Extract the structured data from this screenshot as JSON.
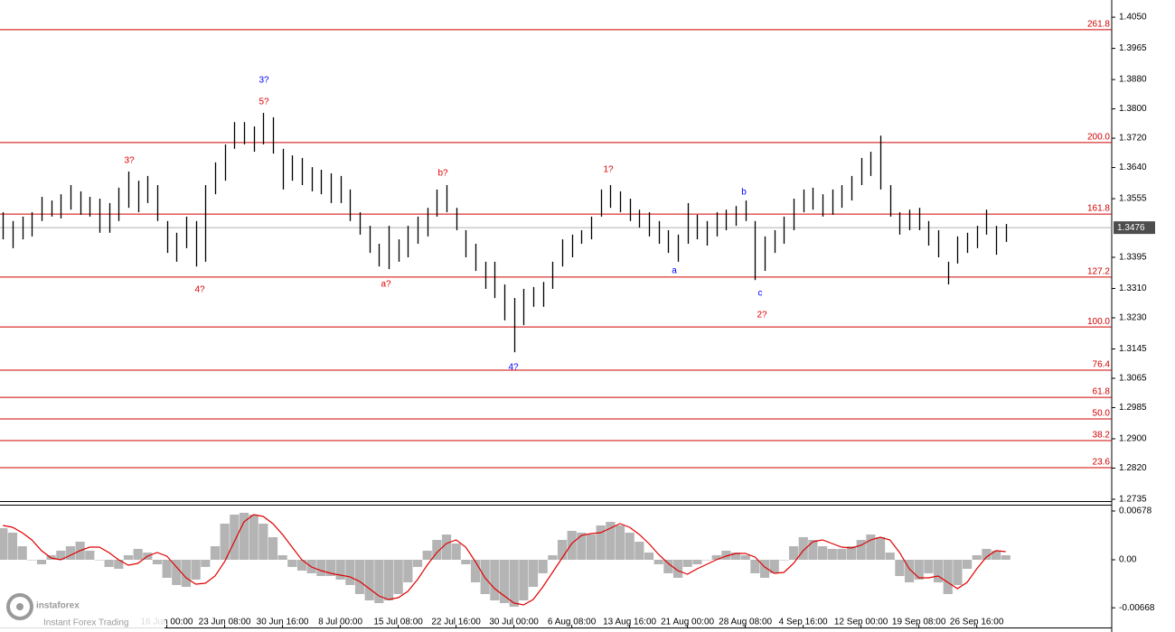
{
  "chart_data": [
    {
      "type": "range",
      "color": "#000000",
      "ylim": [
        1.273,
        1.4097
      ],
      "xlim": [
        -0.3,
        115
      ],
      "yticks": [
        {
          "value": 1.405,
          "label": "1.4050"
        },
        {
          "value": 1.3965,
          "label": "1.3965"
        },
        {
          "value": 1.388,
          "label": "1.3880"
        },
        {
          "value": 1.38,
          "label": "1.3800"
        },
        {
          "value": 1.372,
          "label": "1.3720"
        },
        {
          "value": 1.364,
          "label": "1.3640"
        },
        {
          "value": 1.3555,
          "label": "1.3555"
        },
        {
          "value": 1.3395,
          "label": "1.3395"
        },
        {
          "value": 1.331,
          "label": "1.3310"
        },
        {
          "value": 1.323,
          "label": "1.3230"
        },
        {
          "value": 1.3145,
          "label": "1.3145"
        },
        {
          "value": 1.3065,
          "label": "1.3065"
        },
        {
          "value": 1.2985,
          "label": "1.2985"
        },
        {
          "value": 1.29,
          "label": "1.2900"
        },
        {
          "value": 1.282,
          "label": "1.2820"
        },
        {
          "value": 1.2735,
          "label": "1.2735"
        }
      ],
      "last_price": 1.3476,
      "fib_color": "#d00000",
      "fib_levels": [
        {
          "value": 1.4016,
          "label": "261.8"
        },
        {
          "value": 1.3708,
          "label": "200.0"
        },
        {
          "value": 1.3513,
          "label": "161.8"
        },
        {
          "value": 1.3341,
          "label": "127.2"
        },
        {
          "value": 1.3205,
          "label": "100.0"
        },
        {
          "value": 1.3087,
          "label": "76.4"
        },
        {
          "value": 1.3013,
          "label": "61.8"
        },
        {
          "value": 1.2954,
          "label": "50.0"
        },
        {
          "value": 1.2895,
          "label": "38.2"
        },
        {
          "value": 1.2821,
          "label": "23.6"
        }
      ],
      "high": [
        1.3518,
        1.3494,
        1.3506,
        1.3518,
        1.356,
        1.355,
        1.3567,
        1.3592,
        1.3575,
        1.356,
        1.3555,
        1.3543,
        1.3585,
        1.3629,
        1.3604,
        1.3617,
        1.3592,
        1.3494,
        1.3462,
        1.3506,
        1.3494,
        1.3592,
        1.3654,
        1.3703,
        1.3764,
        1.3764,
        1.3752,
        1.3789,
        1.3777,
        1.3691,
        1.3673,
        1.3666,
        1.3641,
        1.3634,
        1.3624,
        1.3617,
        1.358,
        1.3518,
        1.3481,
        1.3432,
        1.3481,
        1.3444,
        1.3481,
        1.3506,
        1.353,
        1.358,
        1.3592,
        1.353,
        1.3469,
        1.3432,
        1.3383,
        1.3383,
        1.3321,
        1.3284,
        1.3309,
        1.3314,
        1.3328,
        1.3383,
        1.3444,
        1.3457,
        1.3469,
        1.3506,
        1.358,
        1.3592,
        1.3575,
        1.3555,
        1.3525,
        1.3518,
        1.3494,
        1.3469,
        1.3457,
        1.3543,
        1.3511,
        1.3494,
        1.3518,
        1.3525,
        1.3535,
        1.355,
        1.3494,
        1.3452,
        1.3469,
        1.3506,
        1.3555,
        1.358,
        1.3585,
        1.3567,
        1.358,
        1.3592,
        1.3617,
        1.3666,
        1.3683,
        1.3727,
        1.3592,
        1.3518,
        1.3525,
        1.353,
        1.3494,
        1.3469,
        1.3383,
        1.3452,
        1.3462,
        1.3481,
        1.3525,
        1.3481,
        1.3486
      ],
      "low": [
        1.3444,
        1.342,
        1.3444,
        1.3452,
        1.3494,
        1.3506,
        1.3501,
        1.3525,
        1.3511,
        1.3506,
        1.3462,
        1.3462,
        1.3494,
        1.353,
        1.3518,
        1.3543,
        1.3494,
        1.3407,
        1.3383,
        1.342,
        1.337,
        1.3383,
        1.3567,
        1.3604,
        1.3691,
        1.3703,
        1.3683,
        1.3703,
        1.3678,
        1.358,
        1.3604,
        1.3592,
        1.3575,
        1.3567,
        1.3543,
        1.3543,
        1.3494,
        1.3457,
        1.3407,
        1.337,
        1.3363,
        1.3383,
        1.3395,
        1.3432,
        1.3452,
        1.3506,
        1.3518,
        1.3469,
        1.3395,
        1.3358,
        1.3309,
        1.3284,
        1.3223,
        1.3136,
        1.321,
        1.326,
        1.326,
        1.3309,
        1.337,
        1.3395,
        1.3432,
        1.3444,
        1.3506,
        1.353,
        1.3518,
        1.3494,
        1.3476,
        1.3452,
        1.3432,
        1.3407,
        1.3383,
        1.3432,
        1.3444,
        1.3427,
        1.3452,
        1.3469,
        1.3481,
        1.3494,
        1.3333,
        1.3358,
        1.3407,
        1.3432,
        1.3469,
        1.3518,
        1.3525,
        1.3506,
        1.3511,
        1.353,
        1.355,
        1.3592,
        1.3617,
        1.358,
        1.3506,
        1.3457,
        1.3469,
        1.3469,
        1.3427,
        1.3395,
        1.3321,
        1.3378,
        1.3407,
        1.342,
        1.3457,
        1.3402,
        1.3437
      ],
      "annotations": [
        {
          "text": "3?",
          "color": "#e00000"
        },
        {
          "text": "4?",
          "color": "#e00000"
        },
        {
          "text": "3?",
          "color": "#0000ff"
        },
        {
          "text": "5?",
          "color": "#e00000"
        },
        {
          "text": "b?",
          "color": "#e00000"
        },
        {
          "text": "a?",
          "color": "#e00000"
        },
        {
          "text": "4?",
          "color": "#0000ff"
        },
        {
          "text": "1?",
          "color": "#e00000"
        },
        {
          "text": "a",
          "color": "#0000ff"
        },
        {
          "text": "b",
          "color": "#0000ff"
        },
        {
          "text": "c",
          "color": "#0000ff"
        },
        {
          "text": "2?",
          "color": "#e00000"
        }
      ]
    },
    {
      "type": "macd",
      "ylim": [
        -0.00904,
        0.00753
      ],
      "xlim": [
        -0.3,
        115
      ],
      "yticks": [
        0.00678,
        {
          "value": 0,
          "label": "0.00"
        },
        -0.00668
      ],
      "xticks": [
        {
          "value": 17,
          "label": "16 Jun 00:00"
        },
        {
          "value": 23,
          "label": "23 Jun 08:00"
        },
        {
          "value": 29,
          "label": "30 Jun 16:00"
        },
        {
          "value": 35,
          "label": "8 Jul 00:00"
        },
        {
          "value": 41,
          "label": "15 Jul 08:00"
        },
        {
          "value": 47,
          "label": "22 Jul 16:00"
        },
        {
          "value": 53,
          "label": "30 Jul 00:00"
        },
        {
          "value": 59,
          "label": "6 Aug 08:00"
        },
        {
          "value": 65,
          "label": "13 Aug 16:00"
        },
        {
          "value": 71,
          "label": "21 Aug 00:00"
        },
        {
          "value": 77,
          "label": "28 Aug 08:00"
        },
        {
          "value": 83,
          "label": "4 Sep 16:00"
        },
        {
          "value": 89,
          "label": "12 Sep 00:00"
        },
        {
          "value": 95,
          "label": "19 Sep 08:00"
        },
        {
          "value": 101,
          "label": "26 Sep 16:00"
        }
      ],
      "histogram_color": "#b4b4b4",
      "signal_color": "#e00000",
      "histogram": [
        0.00439,
        0.00377,
        0.00188,
        0,
        -0.00063,
        0.00063,
        0.00126,
        0.00188,
        0.00251,
        0.00126,
        0,
        -0.001,
        -0.00126,
        0.00063,
        0.00151,
        0.001,
        -0.00063,
        -0.00251,
        -0.00351,
        -0.00377,
        -0.00276,
        -0.001,
        0.00188,
        0.00502,
        0.00628,
        0.00653,
        0.00628,
        0.00502,
        0.00314,
        0.00063,
        -0.001,
        -0.00151,
        -0.00188,
        -0.00226,
        -0.00226,
        -0.00276,
        -0.00351,
        -0.00477,
        -0.00565,
        -0.00603,
        -0.00565,
        -0.00477,
        -0.00314,
        -0.001,
        0.00126,
        0.00276,
        0.00351,
        0.00226,
        -0.00063,
        -0.00314,
        -0.00477,
        -0.00565,
        -0.00603,
        -0.00653,
        -0.00565,
        -0.00377,
        -0.00188,
        0.00063,
        0.00276,
        0.00402,
        0.00377,
        0.00351,
        0.00477,
        0.00527,
        0.00477,
        0.00377,
        0.00251,
        0.001,
        -0.00063,
        -0.00188,
        -0.00251,
        -0.001,
        -0.00063,
        0,
        0.00063,
        0.00126,
        0.001,
        0.00063,
        -0.00188,
        -0.00251,
        -0.00188,
        0,
        0.00188,
        0.00314,
        0.00276,
        0.00188,
        0.00151,
        0.00151,
        0.00188,
        0.00276,
        0.00351,
        0.00314,
        0.001,
        -0.00226,
        -0.00314,
        -0.00276,
        -0.00188,
        -0.00314,
        -0.00477,
        -0.00351,
        -0.00126,
        0.00063,
        0.00151,
        0.00126,
        0.00063
      ],
      "signal": [
        0.00477,
        0.00452,
        0.00377,
        0.00276,
        0.00126,
        0.00025,
        0,
        0.00063,
        0.00126,
        0.00176,
        0.00176,
        0.001,
        0,
        -0.00075,
        -0.0005,
        0.0005,
        0.001,
        0.0005,
        -0.001,
        -0.00251,
        -0.00339,
        -0.00326,
        -0.00226,
        -0.00025,
        0.00251,
        0.00527,
        0.00628,
        0.00602,
        0.00502,
        0.00351,
        0.00176,
        0,
        -0.001,
        -0.00151,
        -0.00188,
        -0.00213,
        -0.00238,
        -0.00301,
        -0.00402,
        -0.00502,
        -0.00552,
        -0.00527,
        -0.00439,
        -0.00276,
        -0.00075,
        0.001,
        0.00226,
        0.00276,
        0.00176,
        -0.00025,
        -0.00251,
        -0.00402,
        -0.00502,
        -0.00602,
        -0.00628,
        -0.00552,
        -0.00377,
        -0.00176,
        0.00025,
        0.00226,
        0.00339,
        0.00364,
        0.00377,
        0.00439,
        0.00502,
        0.00452,
        0.00351,
        0.00226,
        0.00075,
        -0.0005,
        -0.00151,
        -0.00201,
        -0.00126,
        -0.00063,
        0,
        0.0005,
        0.00088,
        0.00088,
        0.00038,
        -0.001,
        -0.00188,
        -0.00176,
        -0.0005,
        0.00126,
        0.00251,
        0.00276,
        0.00226,
        0.00176,
        0.00163,
        0.00201,
        0.00276,
        0.00314,
        0.00276,
        0.001,
        -0.00126,
        -0.00251,
        -0.00251,
        -0.00226,
        -0.00314,
        -0.00402,
        -0.00314,
        -0.00126,
        0.00038,
        0.00126,
        0.00113
      ]
    }
  ],
  "watermark": {
    "brand": "instaforex",
    "tagline": "Instant Forex Trading"
  }
}
